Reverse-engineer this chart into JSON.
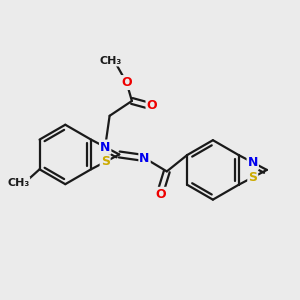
{
  "bg_color": "#ebebeb",
  "bond_color": "#1a1a1a",
  "bond_width": 1.6,
  "atom_colors": {
    "N": "#0000ee",
    "S": "#ccaa00",
    "O": "#ee0000",
    "C": "#1a1a1a"
  },
  "font_size_atom": 9,
  "font_size_small": 8
}
